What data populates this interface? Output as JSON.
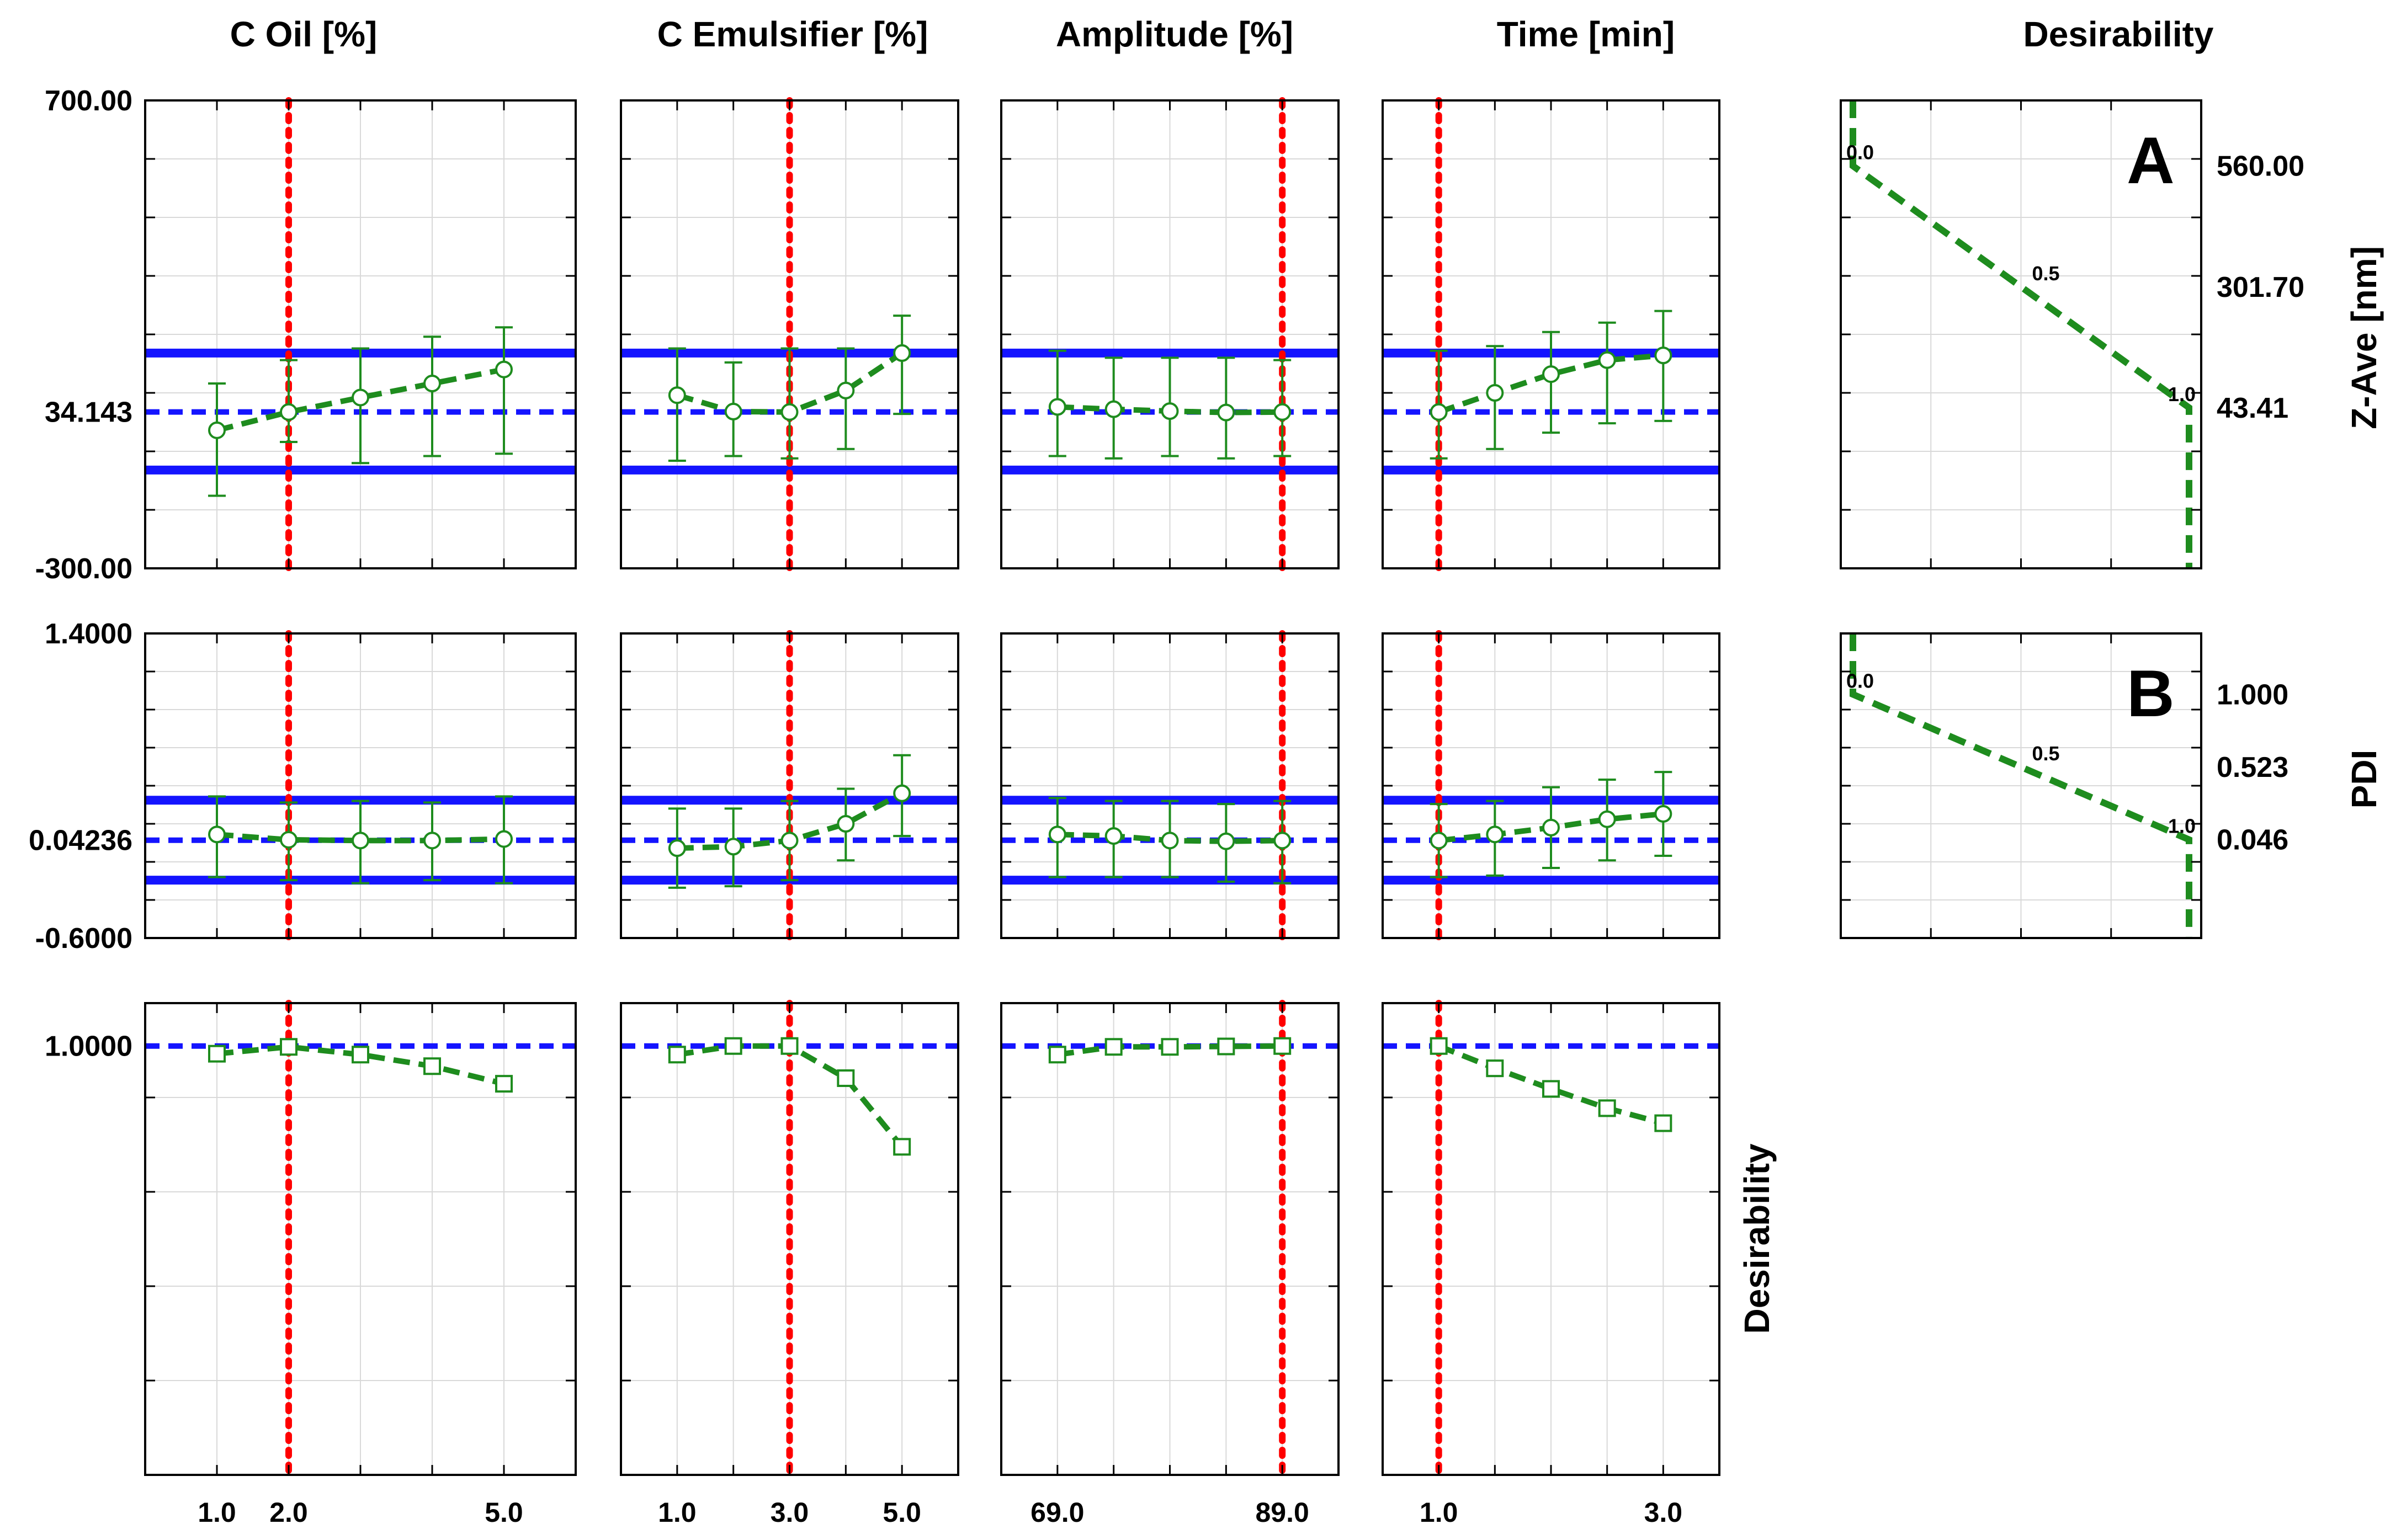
{
  "column_titles": [
    "C Oil [%]",
    "C Emulsifier [%]",
    "Amplitude [%]",
    "Time [min]",
    "Desirability"
  ],
  "colors": {
    "green": "#1e8c1e",
    "blue": "#1414ff",
    "red": "#ff0000",
    "grid": "#d9d9d9"
  },
  "side_labels": {
    "zave": "Z-Ave [nm]",
    "pdi": "PDI",
    "desirability": "Desirability"
  },
  "chart_data": {
    "type": "profiler",
    "factors": [
      {
        "name": "C Oil [%]",
        "xlim": [
          0.0,
          6.0
        ],
        "x": [
          1.0,
          2.0,
          3.0,
          4.0,
          5.0
        ],
        "xticks": [
          "1.0",
          "2.0",
          "5.0"
        ],
        "xtick_values": [
          1.0,
          2.0,
          5.0
        ],
        "current": 2.0
      },
      {
        "name": "C Emulsifier [%]",
        "xlim": [
          0.0,
          6.0
        ],
        "x": [
          1.0,
          2.0,
          3.0,
          4.0,
          5.0
        ],
        "xticks": [
          "1.0",
          "3.0",
          "5.0"
        ],
        "xtick_values": [
          1.0,
          3.0,
          5.0
        ],
        "current": 3.0
      },
      {
        "name": "Amplitude [%]",
        "xlim": [
          64.0,
          94.0
        ],
        "x": [
          69.0,
          74.0,
          79.0,
          84.0,
          89.0
        ],
        "xticks": [
          "69.0",
          "89.0"
        ],
        "xtick_values": [
          69.0,
          89.0
        ],
        "current": 89.0
      },
      {
        "name": "Time [min]",
        "xlim": [
          0.5,
          3.5
        ],
        "x": [
          1.0,
          1.5,
          2.0,
          2.5,
          3.0
        ],
        "xticks": [
          "1.0",
          "3.0"
        ],
        "xtick_values": [
          1.0,
          3.0
        ],
        "current": 1.0
      }
    ],
    "responses": [
      {
        "name": "Z-Ave [nm]",
        "ylim": [
          -300.0,
          700.0
        ],
        "yticks": [
          "700.00",
          "34.143",
          "-300.00"
        ],
        "ytick_values": [
          700.0,
          34.143,
          -300.0
        ],
        "current_value": 34.143,
        "bands": [
          160.0,
          -90.0
        ],
        "series": [
          {
            "mean": [
              -5,
              34,
              65,
              95,
              125
            ],
            "lower": [
              -145,
              -30,
              -75,
              -60,
              -55
            ],
            "upper": [
              95,
              145,
              170,
              195,
              215
            ]
          },
          {
            "mean": [
              70,
              35,
              34,
              80,
              160
            ],
            "lower": [
              -70,
              -60,
              -65,
              -45,
              30
            ],
            "upper": [
              170,
              140,
              170,
              170,
              240
            ]
          },
          {
            "mean": [
              45,
              40,
              36,
              33,
              34
            ],
            "lower": [
              -60,
              -65,
              -60,
              -65,
              -60
            ],
            "upper": [
              165,
              150,
              150,
              150,
              145
            ]
          },
          {
            "mean": [
              34,
              75,
              115,
              145,
              155
            ],
            "lower": [
              -65,
              -45,
              -10,
              10,
              15
            ],
            "upper": [
              165,
              175,
              205,
              225,
              250
            ]
          }
        ],
        "desirability_curve": {
          "label": "A",
          "xlim": [
            -300.0,
            700.0
          ],
          "yticks": [
            "560.00",
            "301.70",
            "43.41"
          ],
          "ytick_values": [
            560.0,
            301.7,
            43.41
          ],
          "points": [
            [
              700,
              0.0
            ],
            [
              560,
              0.0
            ],
            [
              43.41,
              1.0
            ],
            [
              -300,
              1.0
            ]
          ],
          "tick_labels": [
            "0.0",
            "0.5",
            "1.0"
          ]
        }
      },
      {
        "name": "PDI",
        "ylim": [
          -0.6,
          1.4
        ],
        "yticks": [
          "1.4000",
          "0.04236",
          "-0.6000"
        ],
        "ytick_values": [
          1.4,
          0.04236,
          -0.6
        ],
        "current_value": 0.04236,
        "bands": [
          0.305,
          -0.22
        ],
        "series": [
          {
            "mean": [
              0.08,
              0.045,
              0.04,
              0.04,
              0.05
            ],
            "lower": [
              -0.2,
              -0.22,
              -0.24,
              -0.22,
              -0.24
            ],
            "upper": [
              0.33,
              0.29,
              0.3,
              0.29,
              0.33
            ]
          },
          {
            "mean": [
              -0.01,
              0.0,
              0.04,
              0.15,
              0.35
            ],
            "lower": [
              -0.27,
              -0.26,
              -0.22,
              -0.09,
              0.07
            ],
            "upper": [
              0.25,
              0.25,
              0.3,
              0.38,
              0.6
            ]
          },
          {
            "mean": [
              0.08,
              0.07,
              0.04,
              0.035,
              0.04
            ],
            "lower": [
              -0.2,
              -0.2,
              -0.2,
              -0.23,
              -0.24
            ],
            "upper": [
              0.32,
              0.3,
              0.3,
              0.28,
              0.3
            ]
          },
          {
            "mean": [
              0.04,
              0.08,
              0.125,
              0.18,
              0.215
            ],
            "lower": [
              -0.2,
              -0.19,
              -0.14,
              -0.09,
              -0.06
            ],
            "upper": [
              0.28,
              0.3,
              0.39,
              0.44,
              0.49
            ]
          }
        ],
        "desirability_curve": {
          "label": "B",
          "xlim": [
            -0.6,
            1.4
          ],
          "yticks": [
            "1.000",
            "0.523",
            "0.046"
          ],
          "ytick_values": [
            1.0,
            0.523,
            0.046
          ],
          "points": [
            [
              1.4,
              0.0
            ],
            [
              1.0,
              0.0
            ],
            [
              0.046,
              1.0
            ],
            [
              -0.6,
              1.0
            ]
          ],
          "tick_labels": [
            "0.0",
            "0.5",
            "1.0"
          ]
        }
      }
    ],
    "desirability": {
      "name": "Desirability",
      "ylim": [
        0.0,
        1.1
      ],
      "yticks": [
        "1.0000"
      ],
      "ytick_values": [
        1.0
      ],
      "current_value": 1.0,
      "series": [
        {
          "values": [
            0.982,
            0.998,
            0.98,
            0.953,
            0.912
          ]
        },
        {
          "values": [
            0.98,
            1.0,
            1.0,
            0.925,
            0.765
          ]
        },
        {
          "values": [
            0.98,
            0.998,
            0.998,
            0.999,
            1.0
          ]
        },
        {
          "values": [
            1.0,
            0.948,
            0.9,
            0.855,
            0.82
          ]
        }
      ]
    }
  }
}
